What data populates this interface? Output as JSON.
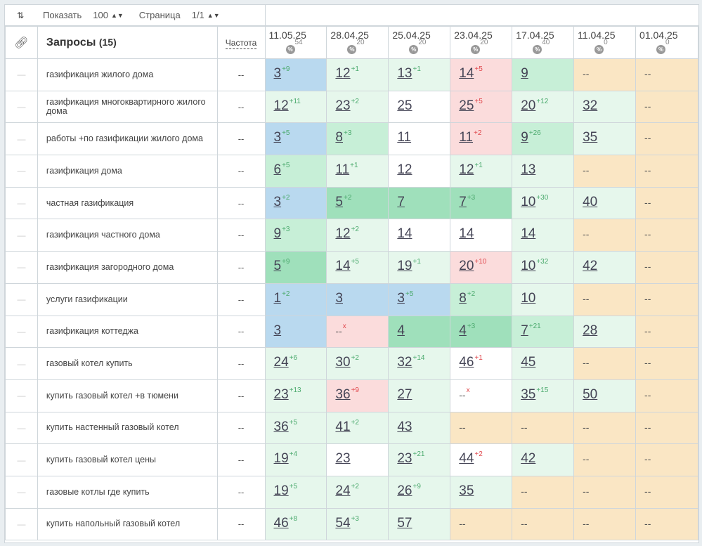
{
  "toolbar": {
    "sort_icon": "sort-icon",
    "show_label": "Показать",
    "show_value": "100",
    "page_label": "Страница",
    "page_value": "1/1"
  },
  "header": {
    "link_icon": "link-icon",
    "queries_title": "Запросы",
    "queries_count": "(15)",
    "frequency_label": "Частота",
    "dates": [
      {
        "date": "11.05.25",
        "pct": "54"
      },
      {
        "date": "28.04.25",
        "pct": "20"
      },
      {
        "date": "25.04.25",
        "pct": "20"
      },
      {
        "date": "23.04.25",
        "pct": "20"
      },
      {
        "date": "17.04.25",
        "pct": "40"
      },
      {
        "date": "11.04.25",
        "pct": "0"
      },
      {
        "date": "01.04.25",
        "pct": "0"
      }
    ],
    "pct_symbol": "%"
  },
  "colors": {
    "blue": "#b9d9ef",
    "green_strong": "#9fe0bb",
    "green_mid": "#c7efd7",
    "green_light": "#e6f7ec",
    "red": "#fbdcdc",
    "white": "#ffffff",
    "tan": "#fae6c4"
  },
  "rows": [
    {
      "dash": "—",
      "query": "газификация жилого дома",
      "freq": "--",
      "cells": [
        {
          "v": "3",
          "c": "+9",
          "d": "up",
          "bg": "blue"
        },
        {
          "v": "12",
          "c": "+1",
          "d": "up",
          "bg": "green_light"
        },
        {
          "v": "13",
          "c": "+1",
          "d": "up",
          "bg": "green_light"
        },
        {
          "v": "14",
          "c": "+5",
          "d": "down",
          "bg": "red"
        },
        {
          "v": "9",
          "c": "",
          "d": "",
          "bg": "green_mid"
        },
        {
          "v": "--",
          "c": "",
          "d": "",
          "bg": "tan"
        },
        {
          "v": "--",
          "c": "",
          "d": "",
          "bg": "tan"
        }
      ]
    },
    {
      "dash": "—",
      "query": "газификация многоквартирного жилого дома",
      "freq": "--",
      "cells": [
        {
          "v": "12",
          "c": "+11",
          "d": "up",
          "bg": "green_light"
        },
        {
          "v": "23",
          "c": "+2",
          "d": "up",
          "bg": "green_light"
        },
        {
          "v": "25",
          "c": "",
          "d": "",
          "bg": "white"
        },
        {
          "v": "25",
          "c": "+5",
          "d": "down",
          "bg": "red"
        },
        {
          "v": "20",
          "c": "+12",
          "d": "up",
          "bg": "green_light"
        },
        {
          "v": "32",
          "c": "",
          "d": "",
          "bg": "green_light"
        },
        {
          "v": "--",
          "c": "",
          "d": "",
          "bg": "tan"
        }
      ]
    },
    {
      "dash": "—",
      "query": "работы +по газификации жилого дома",
      "freq": "--",
      "cells": [
        {
          "v": "3",
          "c": "+5",
          "d": "up",
          "bg": "blue"
        },
        {
          "v": "8",
          "c": "+3",
          "d": "up",
          "bg": "green_mid"
        },
        {
          "v": "11",
          "c": "",
          "d": "",
          "bg": "white"
        },
        {
          "v": "11",
          "c": "+2",
          "d": "down",
          "bg": "red"
        },
        {
          "v": "9",
          "c": "+26",
          "d": "up",
          "bg": "green_mid"
        },
        {
          "v": "35",
          "c": "",
          "d": "",
          "bg": "green_light"
        },
        {
          "v": "--",
          "c": "",
          "d": "",
          "bg": "tan"
        }
      ]
    },
    {
      "dash": "—",
      "query": "газификация дома",
      "freq": "--",
      "cells": [
        {
          "v": "6",
          "c": "+5",
          "d": "up",
          "bg": "green_mid"
        },
        {
          "v": "11",
          "c": "+1",
          "d": "up",
          "bg": "green_light"
        },
        {
          "v": "12",
          "c": "",
          "d": "",
          "bg": "white"
        },
        {
          "v": "12",
          "c": "+1",
          "d": "up",
          "bg": "green_light"
        },
        {
          "v": "13",
          "c": "",
          "d": "",
          "bg": "green_light"
        },
        {
          "v": "--",
          "c": "",
          "d": "",
          "bg": "tan"
        },
        {
          "v": "--",
          "c": "",
          "d": "",
          "bg": "tan"
        }
      ]
    },
    {
      "dash": "—",
      "query": "частная газификация",
      "freq": "--",
      "cells": [
        {
          "v": "3",
          "c": "+2",
          "d": "up",
          "bg": "blue"
        },
        {
          "v": "5",
          "c": "+2",
          "d": "up",
          "bg": "green_strong"
        },
        {
          "v": "7",
          "c": "",
          "d": "",
          "bg": "green_strong"
        },
        {
          "v": "7",
          "c": "+3",
          "d": "up",
          "bg": "green_strong"
        },
        {
          "v": "10",
          "c": "+30",
          "d": "up",
          "bg": "green_light"
        },
        {
          "v": "40",
          "c": "",
          "d": "",
          "bg": "green_light"
        },
        {
          "v": "--",
          "c": "",
          "d": "",
          "bg": "tan"
        }
      ]
    },
    {
      "dash": "—",
      "query": "газификация частного дома",
      "freq": "--",
      "cells": [
        {
          "v": "9",
          "c": "+3",
          "d": "up",
          "bg": "green_mid"
        },
        {
          "v": "12",
          "c": "+2",
          "d": "up",
          "bg": "green_light"
        },
        {
          "v": "14",
          "c": "",
          "d": "",
          "bg": "white"
        },
        {
          "v": "14",
          "c": "",
          "d": "",
          "bg": "white"
        },
        {
          "v": "14",
          "c": "",
          "d": "",
          "bg": "green_light"
        },
        {
          "v": "--",
          "c": "",
          "d": "",
          "bg": "tan"
        },
        {
          "v": "--",
          "c": "",
          "d": "",
          "bg": "tan"
        }
      ]
    },
    {
      "dash": "—",
      "query": "газификация загородного дома",
      "freq": "--",
      "cells": [
        {
          "v": "5",
          "c": "+9",
          "d": "up",
          "bg": "green_strong"
        },
        {
          "v": "14",
          "c": "+5",
          "d": "up",
          "bg": "green_light"
        },
        {
          "v": "19",
          "c": "+1",
          "d": "up",
          "bg": "green_light"
        },
        {
          "v": "20",
          "c": "+10",
          "d": "down",
          "bg": "red"
        },
        {
          "v": "10",
          "c": "+32",
          "d": "up",
          "bg": "green_light"
        },
        {
          "v": "42",
          "c": "",
          "d": "",
          "bg": "green_light"
        },
        {
          "v": "--",
          "c": "",
          "d": "",
          "bg": "tan"
        }
      ]
    },
    {
      "dash": "—",
      "query": "услуги газификации",
      "freq": "--",
      "cells": [
        {
          "v": "1",
          "c": "+2",
          "d": "up",
          "bg": "blue"
        },
        {
          "v": "3",
          "c": "",
          "d": "",
          "bg": "blue"
        },
        {
          "v": "3",
          "c": "+5",
          "d": "up",
          "bg": "blue"
        },
        {
          "v": "8",
          "c": "+2",
          "d": "up",
          "bg": "green_mid"
        },
        {
          "v": "10",
          "c": "",
          "d": "",
          "bg": "green_light"
        },
        {
          "v": "--",
          "c": "",
          "d": "",
          "bg": "tan"
        },
        {
          "v": "--",
          "c": "",
          "d": "",
          "bg": "tan"
        }
      ]
    },
    {
      "dash": "—",
      "query": "газификация коттеджа",
      "freq": "--",
      "cells": [
        {
          "v": "3",
          "c": "",
          "d": "",
          "bg": "blue"
        },
        {
          "v": "--",
          "c": "x",
          "d": "down",
          "bg": "red",
          "plain": true
        },
        {
          "v": "4",
          "c": "",
          "d": "",
          "bg": "green_strong"
        },
        {
          "v": "4",
          "c": "+3",
          "d": "up",
          "bg": "green_strong"
        },
        {
          "v": "7",
          "c": "+21",
          "d": "up",
          "bg": "green_mid"
        },
        {
          "v": "28",
          "c": "",
          "d": "",
          "bg": "green_light"
        },
        {
          "v": "--",
          "c": "",
          "d": "",
          "bg": "tan"
        }
      ]
    },
    {
      "dash": "—",
      "query": "газовый котел купить",
      "freq": "--",
      "cells": [
        {
          "v": "24",
          "c": "+6",
          "d": "up",
          "bg": "green_light"
        },
        {
          "v": "30",
          "c": "+2",
          "d": "up",
          "bg": "green_light"
        },
        {
          "v": "32",
          "c": "+14",
          "d": "up",
          "bg": "green_light"
        },
        {
          "v": "46",
          "c": "+1",
          "d": "down",
          "bg": "white"
        },
        {
          "v": "45",
          "c": "",
          "d": "",
          "bg": "green_light"
        },
        {
          "v": "--",
          "c": "",
          "d": "",
          "bg": "tan"
        },
        {
          "v": "--",
          "c": "",
          "d": "",
          "bg": "tan"
        }
      ]
    },
    {
      "dash": "—",
      "query": "купить газовый котел +в тюмени",
      "freq": "--",
      "cells": [
        {
          "v": "23",
          "c": "+13",
          "d": "up",
          "bg": "green_light"
        },
        {
          "v": "36",
          "c": "+9",
          "d": "down",
          "bg": "red"
        },
        {
          "v": "27",
          "c": "",
          "d": "",
          "bg": "green_light"
        },
        {
          "v": "--",
          "c": "x",
          "d": "down",
          "bg": "white",
          "plain": true
        },
        {
          "v": "35",
          "c": "+15",
          "d": "up",
          "bg": "green_light"
        },
        {
          "v": "50",
          "c": "",
          "d": "",
          "bg": "green_light"
        },
        {
          "v": "--",
          "c": "",
          "d": "",
          "bg": "tan"
        }
      ]
    },
    {
      "dash": "—",
      "query": "купить настенный газовый котел",
      "freq": "--",
      "cells": [
        {
          "v": "36",
          "c": "+5",
          "d": "up",
          "bg": "green_light"
        },
        {
          "v": "41",
          "c": "+2",
          "d": "up",
          "bg": "green_light"
        },
        {
          "v": "43",
          "c": "",
          "d": "",
          "bg": "green_light"
        },
        {
          "v": "--",
          "c": "",
          "d": "",
          "bg": "tan"
        },
        {
          "v": "--",
          "c": "",
          "d": "",
          "bg": "tan"
        },
        {
          "v": "--",
          "c": "",
          "d": "",
          "bg": "tan"
        },
        {
          "v": "--",
          "c": "",
          "d": "",
          "bg": "tan"
        }
      ]
    },
    {
      "dash": "—",
      "query": "купить газовый котел цены",
      "freq": "--",
      "cells": [
        {
          "v": "19",
          "c": "+4",
          "d": "up",
          "bg": "green_light"
        },
        {
          "v": "23",
          "c": "",
          "d": "",
          "bg": "white"
        },
        {
          "v": "23",
          "c": "+21",
          "d": "up",
          "bg": "green_light"
        },
        {
          "v": "44",
          "c": "+2",
          "d": "down",
          "bg": "white"
        },
        {
          "v": "42",
          "c": "",
          "d": "",
          "bg": "green_light"
        },
        {
          "v": "--",
          "c": "",
          "d": "",
          "bg": "tan"
        },
        {
          "v": "--",
          "c": "",
          "d": "",
          "bg": "tan"
        }
      ]
    },
    {
      "dash": "—",
      "query": "газовые котлы где купить",
      "freq": "--",
      "cells": [
        {
          "v": "19",
          "c": "+5",
          "d": "up",
          "bg": "green_light"
        },
        {
          "v": "24",
          "c": "+2",
          "d": "up",
          "bg": "green_light"
        },
        {
          "v": "26",
          "c": "+9",
          "d": "up",
          "bg": "green_light"
        },
        {
          "v": "35",
          "c": "",
          "d": "",
          "bg": "green_light"
        },
        {
          "v": "--",
          "c": "",
          "d": "",
          "bg": "tan"
        },
        {
          "v": "--",
          "c": "",
          "d": "",
          "bg": "tan"
        },
        {
          "v": "--",
          "c": "",
          "d": "",
          "bg": "tan"
        }
      ]
    },
    {
      "dash": "—",
      "query": "купить напольный газовый котел",
      "freq": "--",
      "cells": [
        {
          "v": "46",
          "c": "+8",
          "d": "up",
          "bg": "green_light"
        },
        {
          "v": "54",
          "c": "+3",
          "d": "up",
          "bg": "green_light"
        },
        {
          "v": "57",
          "c": "",
          "d": "",
          "bg": "green_light"
        },
        {
          "v": "--",
          "c": "",
          "d": "",
          "bg": "tan"
        },
        {
          "v": "--",
          "c": "",
          "d": "",
          "bg": "tan"
        },
        {
          "v": "--",
          "c": "",
          "d": "",
          "bg": "tan"
        },
        {
          "v": "--",
          "c": "",
          "d": "",
          "bg": "tan"
        }
      ]
    }
  ]
}
